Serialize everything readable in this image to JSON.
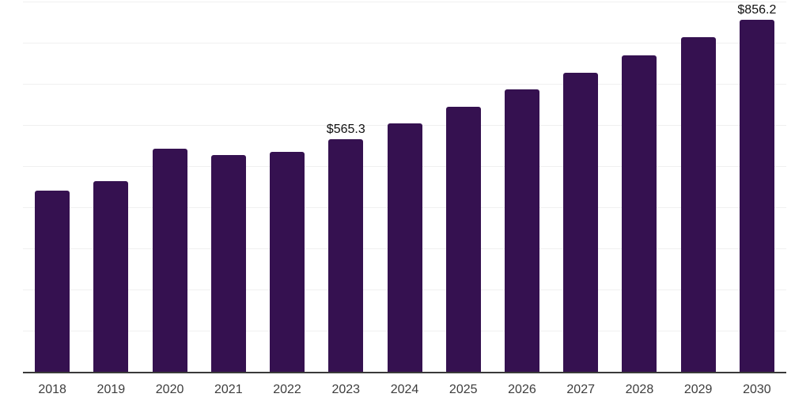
{
  "chart_data": {
    "type": "bar",
    "title": "",
    "xlabel": "",
    "ylabel": "",
    "categories": [
      "2018",
      "2019",
      "2020",
      "2021",
      "2022",
      "2023",
      "2024",
      "2025",
      "2026",
      "2027",
      "2028",
      "2029",
      "2030"
    ],
    "values": [
      441.0,
      463.0,
      542.0,
      526.0,
      534.0,
      565.3,
      604.0,
      645.0,
      686.0,
      727.0,
      770.0,
      813.0,
      856.2
    ],
    "bar_labels": [
      "",
      "",
      "",
      "",
      "",
      "$565.3",
      "",
      "",
      "",
      "",
      "",
      "",
      "$856.2"
    ],
    "ylim": [
      0,
      900
    ],
    "grid_interval": 100,
    "grid": true,
    "legend": false,
    "bar_color": "#351150",
    "gridline_color": "#f0f0f0",
    "axis_line_color": "#3a3a3a",
    "tick_label_color": "#3d3d3d",
    "data_label_color": "#101010",
    "background_color": "#ffffff"
  }
}
